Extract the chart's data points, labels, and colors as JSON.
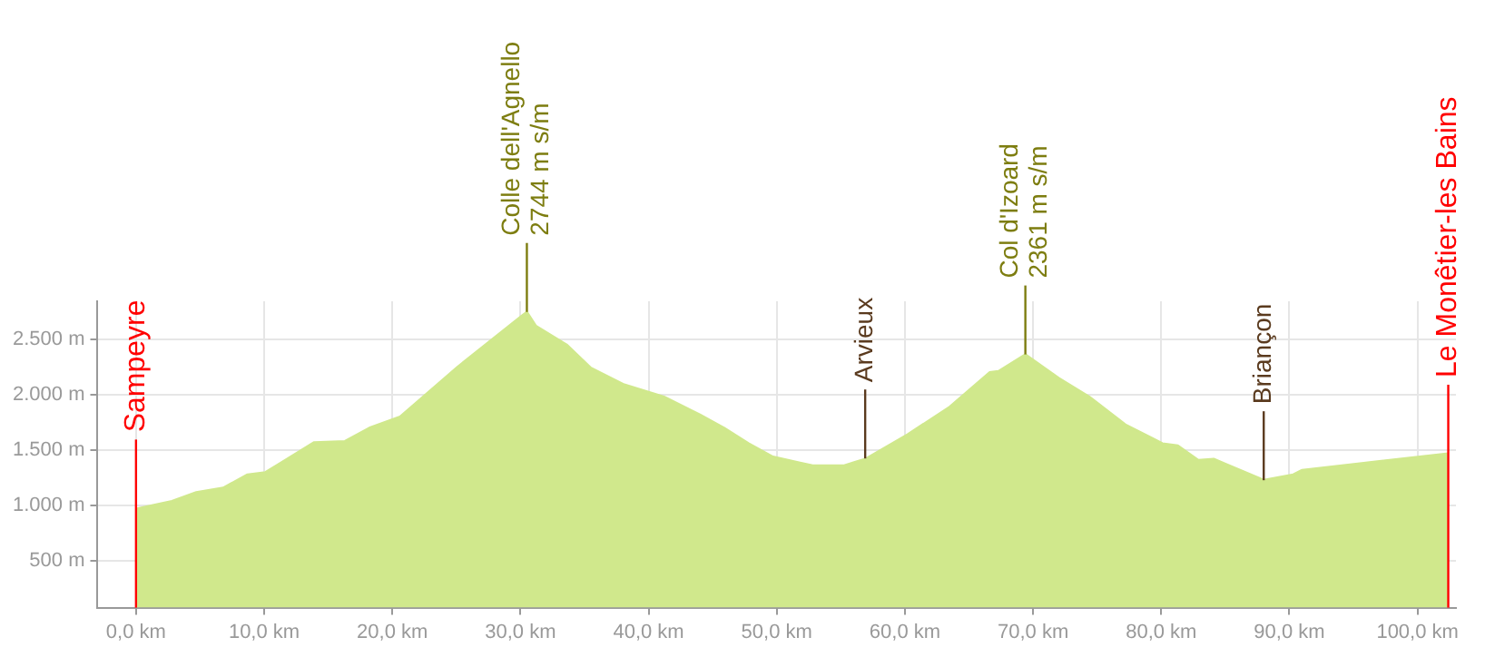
{
  "chart_data": {
    "type": "area",
    "x": [
      0,
      2.8,
      4.7,
      6.8,
      8.7,
      10.1,
      13.9,
      16.3,
      18.2,
      20.6,
      25.1,
      30.1,
      30.5,
      31.2,
      33.6,
      35.5,
      38.1,
      41.2,
      44.0,
      45.9,
      47.8,
      49.7,
      52.8,
      55.2,
      56.9,
      60.2,
      63.5,
      66.6,
      67.3,
      69.4,
      72.0,
      74.4,
      77.2,
      80.1,
      81.3,
      82.9,
      84.1,
      88.0,
      90.3,
      91.0,
      102.4
    ],
    "series": [
      {
        "color": "#d0e88c",
        "values": [
          970,
          1040,
          1120,
          1160,
          1280,
          1300,
          1570,
          1580,
          1700,
          1800,
          2250,
          2710,
          2744,
          2620,
          2450,
          2240,
          2090,
          1980,
          1820,
          1700,
          1560,
          1440,
          1360,
          1360,
          1420,
          1640,
          1890,
          2200,
          2210,
          2361,
          2150,
          1980,
          1730,
          1560,
          1540,
          1410,
          1420,
          1230,
          1280,
          1320,
          1470
        ]
      }
    ],
    "xlim": [
      -3,
      103
    ],
    "ylim": [
      80,
      2840
    ],
    "xticks": [
      {
        "value": 0,
        "label": "0,0 km"
      },
      {
        "value": 10,
        "label": "10,0 km"
      },
      {
        "value": 20,
        "label": "20,0 km"
      },
      {
        "value": 30,
        "label": "30,0 km"
      },
      {
        "value": 40,
        "label": "40,0 km"
      },
      {
        "value": 50,
        "label": "50,0 km"
      },
      {
        "value": 60,
        "label": "60,0 km"
      },
      {
        "value": 70,
        "label": "70,0 km"
      },
      {
        "value": 80,
        "label": "80,0 km"
      },
      {
        "value": 90,
        "label": "90,0 km"
      },
      {
        "value": 100,
        "label": "100,0 km"
      }
    ],
    "yticks": [
      {
        "value": 500,
        "label": "500 m"
      },
      {
        "value": 1000,
        "label": "1.000 m"
      },
      {
        "value": 1500,
        "label": "1.500 m"
      },
      {
        "value": 2000,
        "label": "2.000 m"
      },
      {
        "value": 2500,
        "label": "2.500 m"
      }
    ],
    "grid": true,
    "legend": false,
    "marker": "none",
    "line_style": "solid",
    "annotations": [
      {
        "text": "Sampeyre",
        "x": 0,
        "y": 973
      },
      {
        "text": "Colle dell'Agnello\n2744 m s/m",
        "x": 30.5,
        "y": 2744
      },
      {
        "text": "Arvieux",
        "x": 56.9,
        "y": 1424
      },
      {
        "text": "Col d'Izoard\n2361 m s/m",
        "x": 69.4,
        "y": 2361
      },
      {
        "text": "Briançon",
        "x": 88.0,
        "y": 1228
      },
      {
        "text": "Le Monêtier-les Bains",
        "x": 102.4,
        "y": 1467
      }
    ]
  }
}
